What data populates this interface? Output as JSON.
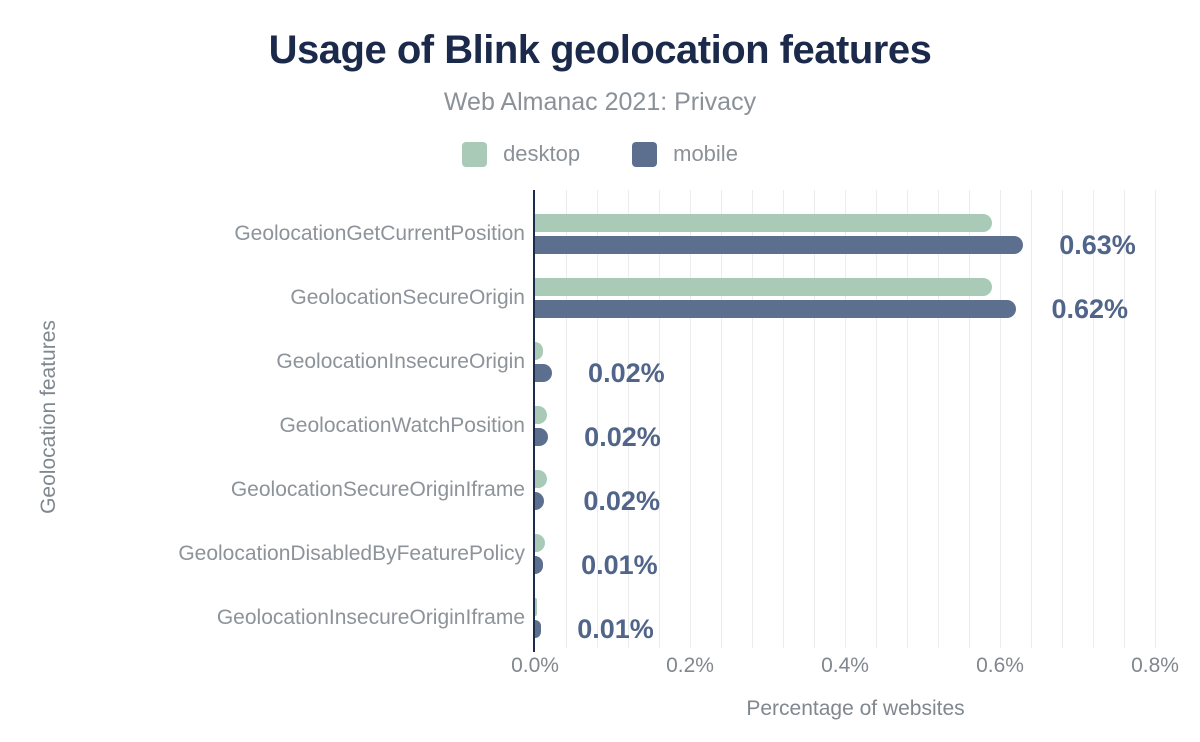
{
  "colors": {
    "title": "#1b2a4b",
    "subtitle_gray": "#8b9198",
    "category_gray": "#8d939a",
    "tick_gray": "#81878f",
    "annotation": "#51658a",
    "axis": "#1b2b4a",
    "gridline": "#ececec",
    "desktop": "#a8cab7",
    "mobile": "#5c6f8e"
  },
  "legend": {
    "desktop_label": "desktop",
    "mobile_label": "mobile"
  },
  "chart_data": {
    "type": "bar",
    "orientation": "horizontal",
    "title": "Usage of Blink geolocation features",
    "subtitle": "Web Almanac 2021: Privacy",
    "xlabel": "Percentage of websites",
    "ylabel": "Geolocation features",
    "legend_position": "top",
    "grid": "vertical",
    "categories": [
      "GeolocationGetCurrentPosition",
      "GeolocationSecureOrigin",
      "GeolocationInsecureOrigin",
      "GeolocationWatchPosition",
      "GeolocationSecureOriginIframe",
      "GeolocationDisabledByFeaturePolicy",
      "GeolocationInsecureOriginIframe"
    ],
    "series": [
      {
        "name": "desktop",
        "values": [
          0.59,
          0.59,
          0.01,
          0.015,
          0.016,
          0.013,
          0.002
        ]
      },
      {
        "name": "mobile",
        "values": [
          0.63,
          0.62,
          0.022,
          0.017,
          0.011,
          0.01,
          0.008
        ]
      }
    ],
    "annotations": [
      "0.63%",
      "0.62%",
      "0.02%",
      "0.02%",
      "0.02%",
      "0.01%",
      "0.01%"
    ],
    "x_ticks": [
      {
        "value": 0.0,
        "label": "0.0%"
      },
      {
        "value": 0.2,
        "label": "0.2%"
      },
      {
        "value": 0.4,
        "label": "0.4%"
      },
      {
        "value": 0.6,
        "label": "0.6%"
      },
      {
        "value": 0.8,
        "label": "0.8%"
      }
    ],
    "xlim": [
      0,
      0.827
    ],
    "gridline_step": 0.04,
    "value_unit": "%"
  }
}
